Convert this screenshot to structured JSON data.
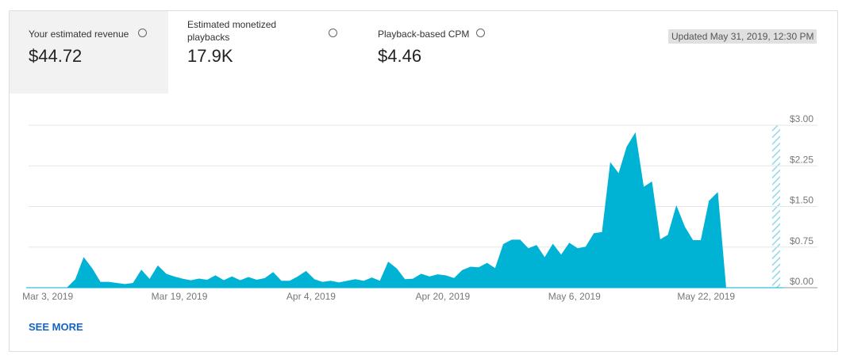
{
  "metrics": [
    {
      "label": "Your estimated revenue",
      "value": "$44.72"
    },
    {
      "label": "Estimated monetized playbacks",
      "value": "17.9K"
    },
    {
      "label": "Playback-based CPM",
      "value": "$4.46"
    }
  ],
  "updated": "Updated May 31, 2019, 12:30 PM",
  "link": "SEE MORE",
  "chart_data": {
    "type": "area",
    "color": "#00b3d4",
    "grid": true,
    "categories": [
      null,
      null,
      null,
      "Mar 3, 2019",
      null,
      null,
      null,
      null,
      null,
      null,
      null,
      null,
      null,
      null,
      null,
      null,
      null,
      null,
      null,
      "Mar 19, 2019",
      null,
      null,
      null,
      null,
      null,
      null,
      null,
      null,
      null,
      null,
      null,
      null,
      null,
      null,
      null,
      "Apr 4, 2019",
      null,
      null,
      null,
      null,
      null,
      null,
      null,
      null,
      null,
      null,
      null,
      null,
      null,
      null,
      null,
      "Apr 20, 2019",
      null,
      null,
      null,
      null,
      null,
      null,
      null,
      null,
      null,
      null,
      null,
      null,
      null,
      null,
      null,
      "May 6, 2019",
      null,
      null,
      null,
      null,
      null,
      null,
      null,
      null,
      null,
      null,
      null,
      null,
      null,
      null,
      null,
      "May 22, 2019",
      null,
      null,
      null,
      null,
      null,
      null,
      null,
      null,
      null
    ],
    "values": [
      0,
      0,
      0,
      0,
      0,
      0,
      0.15,
      0.55,
      0.35,
      0.1,
      0.1,
      0.08,
      0.06,
      0.08,
      0.32,
      0.15,
      0.4,
      0.25,
      0.2,
      0.16,
      0.13,
      0.16,
      0.14,
      0.22,
      0.13,
      0.2,
      0.13,
      0.19,
      0.14,
      0.17,
      0.28,
      0.12,
      0.12,
      0.2,
      0.3,
      0.15,
      0.1,
      0.12,
      0.09,
      0.12,
      0.15,
      0.12,
      0.18,
      0.12,
      0.47,
      0.35,
      0.15,
      0.16,
      0.25,
      0.2,
      0.24,
      0.22,
      0.17,
      0.32,
      0.38,
      0.37,
      0.45,
      0.35,
      0.8,
      0.88,
      0.88,
      0.72,
      0.78,
      0.55,
      0.8,
      0.6,
      0.82,
      0.72,
      0.75,
      1.0,
      1.02,
      2.3,
      2.1,
      2.6,
      2.85,
      1.85,
      1.95,
      0.88,
      0.97,
      1.5,
      1.12,
      0.87,
      0.87,
      1.6,
      1.75,
      0,
      0,
      0,
      0,
      0,
      0,
      0,
      0
    ],
    "ylim": [
      0,
      3
    ],
    "yticks": [
      {
        "value": 0,
        "label": "$0.00"
      },
      {
        "value": 0.75,
        "label": "$0.75"
      },
      {
        "value": 1.5,
        "label": "$1.50"
      },
      {
        "value": 2.25,
        "label": "$2.25"
      },
      {
        "value": 3,
        "label": "$3.00"
      }
    ]
  }
}
